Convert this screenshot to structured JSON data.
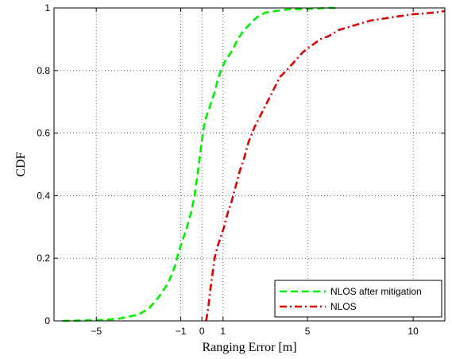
{
  "chart_data": {
    "type": "line",
    "title": "",
    "xlabel": "Ranging Error [m]",
    "ylabel": "CDF",
    "xlim": [
      -7,
      11.5
    ],
    "ylim": [
      0,
      1
    ],
    "xticks": [
      -5,
      -1,
      0,
      1,
      5,
      10
    ],
    "xtick_labels": [
      "−5",
      "−1",
      "0",
      "1",
      "5",
      "10"
    ],
    "yticks": [
      0,
      0.2,
      0.4,
      0.6,
      0.8,
      1
    ],
    "ytick_labels": [
      "0",
      "0.2",
      "0.4",
      "0.6",
      "0.8",
      "1"
    ],
    "grid": true,
    "legend_position": "bottom-right",
    "series": [
      {
        "name": "NLOS after mitigation",
        "color": "#00ee00",
        "line_style": "dashed",
        "x": [
          -6.6,
          -5.0,
          -4.0,
          -3.0,
          -2.5,
          -2.0,
          -1.6,
          -1.3,
          -1.1,
          -0.9,
          -0.7,
          -0.5,
          -0.35,
          -0.2,
          -0.05,
          0.05,
          0.15,
          0.3,
          0.45,
          0.6,
          0.75,
          0.9,
          1.1,
          1.4,
          1.7,
          2.0,
          2.3,
          2.6,
          3.0,
          3.5,
          4.0,
          5.0,
          6.0,
          6.5
        ],
        "y": [
          0.0,
          0.002,
          0.006,
          0.02,
          0.04,
          0.08,
          0.12,
          0.17,
          0.22,
          0.26,
          0.3,
          0.35,
          0.4,
          0.47,
          0.55,
          0.6,
          0.64,
          0.67,
          0.7,
          0.73,
          0.77,
          0.8,
          0.83,
          0.86,
          0.9,
          0.93,
          0.95,
          0.97,
          0.985,
          0.99,
          0.995,
          0.997,
          1.0,
          1.0
        ]
      },
      {
        "name": "NLOS",
        "color": "#dd0000",
        "line_style": "dash-dot",
        "x": [
          0.2,
          0.3,
          0.4,
          0.5,
          0.6,
          0.75,
          0.9,
          1.05,
          1.2,
          1.4,
          1.6,
          1.8,
          2.0,
          2.2,
          2.5,
          2.8,
          3.1,
          3.4,
          3.7,
          4.0,
          4.4,
          4.8,
          5.2,
          5.6,
          6.0,
          6.5,
          7.0,
          7.5,
          8.0,
          9.0,
          10.0,
          11.0,
          11.5
        ],
        "y": [
          0.0,
          0.04,
          0.1,
          0.15,
          0.2,
          0.24,
          0.27,
          0.3,
          0.34,
          0.38,
          0.43,
          0.48,
          0.52,
          0.57,
          0.62,
          0.66,
          0.7,
          0.74,
          0.78,
          0.8,
          0.83,
          0.86,
          0.88,
          0.9,
          0.91,
          0.93,
          0.94,
          0.95,
          0.96,
          0.97,
          0.98,
          0.985,
          0.99
        ]
      }
    ]
  }
}
